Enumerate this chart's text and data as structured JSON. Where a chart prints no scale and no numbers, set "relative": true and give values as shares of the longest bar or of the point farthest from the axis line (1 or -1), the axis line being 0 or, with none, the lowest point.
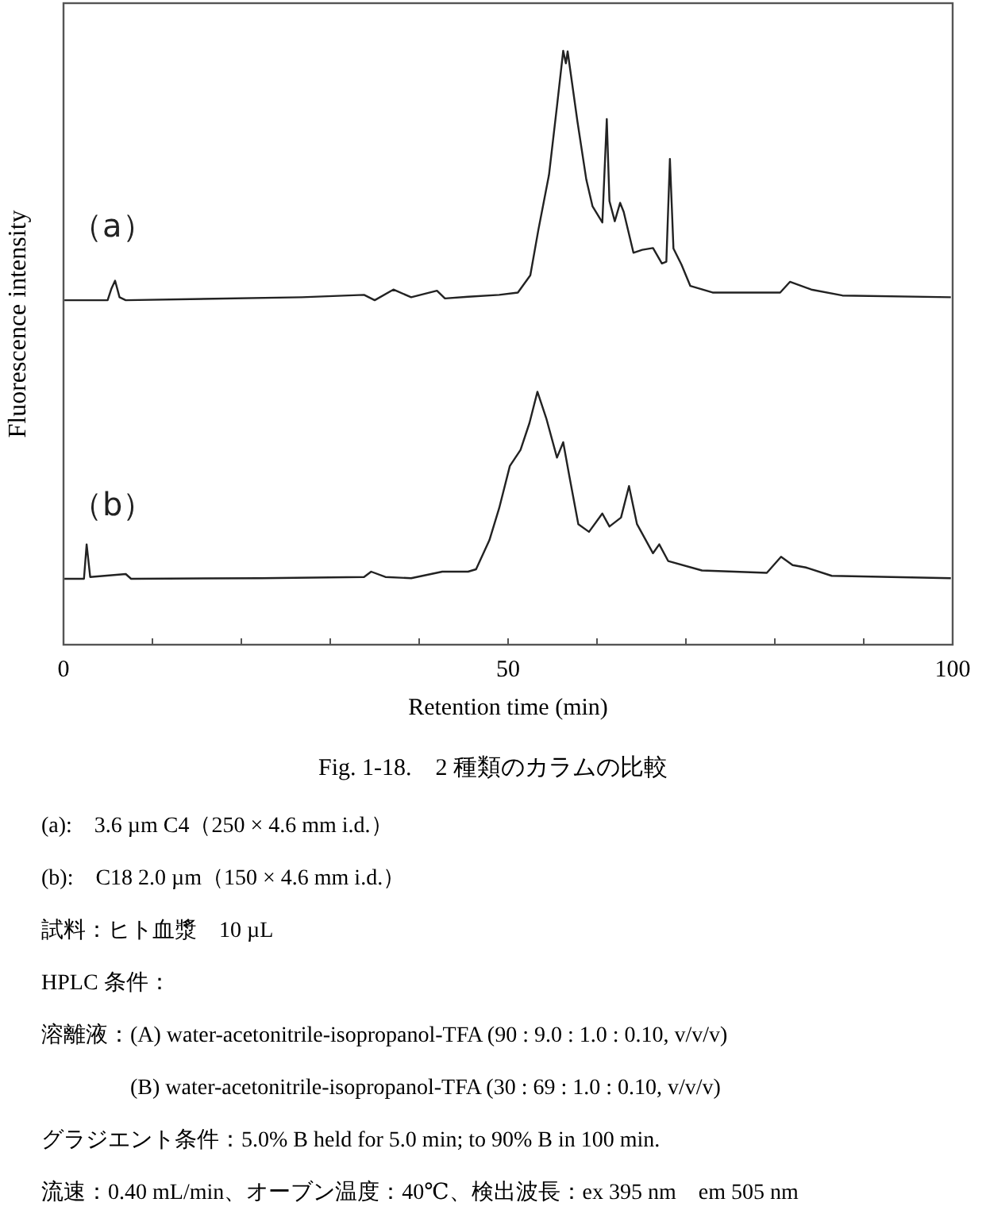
{
  "chart_data": {
    "type": "line",
    "relative": true,
    "title": "Fig. 1-18.　2 種類のカラムの比較",
    "xlabel": "Retention time (min)",
    "ylabel": "Fluorescence intensity",
    "xlim": [
      0,
      100
    ],
    "xticks": [
      0,
      {
        "value": 10,
        "label": null
      },
      {
        "value": 20,
        "label": null
      },
      {
        "value": 30,
        "label": null
      },
      {
        "value": 40,
        "label": null
      },
      50,
      {
        "value": 60,
        "label": null
      },
      {
        "value": 70,
        "label": null
      },
      {
        "value": 80,
        "label": null
      },
      {
        "value": 90,
        "label": null
      },
      100
    ],
    "grid": false,
    "legend": false,
    "series": [
      {
        "name": "（a）",
        "color": "#222222",
        "x": [
          0.1,
          4.96,
          5.4,
          5.8,
          6.3,
          7.0,
          26.8,
          33.8,
          35.0,
          37.1,
          39.1,
          42.0,
          42.9,
          45.5,
          49.0,
          51.1,
          52.5,
          53.4,
          54.6,
          55.5,
          56.2,
          56.5,
          56.7,
          57.8,
          58.8,
          59.5,
          60.6,
          61.1,
          61.4,
          62.0,
          62.6,
          63.0,
          64.1,
          65.1,
          66.3,
          67.3,
          67.8,
          68.2,
          68.6,
          69.5,
          70.5,
          73.0,
          80.6,
          81.7,
          84.1,
          87.6,
          99.8
        ],
        "values": [
          0.58,
          0.58,
          0.6,
          0.613,
          0.585,
          0.58,
          0.585,
          0.589,
          0.58,
          0.598,
          0.585,
          0.596,
          0.583,
          0.586,
          0.589,
          0.593,
          0.622,
          0.698,
          0.791,
          0.907,
          1.0,
          0.979,
          0.999,
          0.881,
          0.783,
          0.738,
          0.711,
          0.885,
          0.747,
          0.713,
          0.744,
          0.729,
          0.66,
          0.665,
          0.668,
          0.642,
          0.645,
          0.818,
          0.667,
          0.64,
          0.604,
          0.593,
          0.593,
          0.611,
          0.598,
          0.588,
          0.585
        ]
      },
      {
        "name": "（b）",
        "color": "#222222",
        "x": [
          0.1,
          2.3,
          2.6,
          3.0,
          7.0,
          7.6,
          22.2,
          33.8,
          34.6,
          36.2,
          39.1,
          42.6,
          45.5,
          46.4,
          47.9,
          49.0,
          50.2,
          51.4,
          52.4,
          53.3,
          54.3,
          55.5,
          56.2,
          56.9,
          57.9,
          59.1,
          60.6,
          61.4,
          62.7,
          63.6,
          64.5,
          66.3,
          67.0,
          68.0,
          71.8,
          79.1,
          80.7,
          82.0,
          83.5,
          86.4,
          99.8
        ],
        "values": [
          0.111,
          0.111,
          0.169,
          0.114,
          0.119,
          0.111,
          0.112,
          0.114,
          0.123,
          0.114,
          0.112,
          0.123,
          0.123,
          0.127,
          0.176,
          0.23,
          0.301,
          0.328,
          0.373,
          0.426,
          0.381,
          0.315,
          0.341,
          0.283,
          0.203,
          0.19,
          0.221,
          0.199,
          0.214,
          0.267,
          0.203,
          0.154,
          0.169,
          0.141,
          0.125,
          0.121,
          0.148,
          0.134,
          0.13,
          0.116,
          0.112
        ]
      }
    ],
    "annotations": [
      "(a):　3.6 µm C4（250 × 4.6 mm i.d.）",
      "(b):　C18 2.0 µm（150 × 4.6 mm i.d.）",
      "試料：ヒト血漿　10 µL",
      "HPLC 条件：",
      "溶離液：(A) water-acetonitrile-isopropanol-TFA (90 : 9.0 : 1.0 : 0.10, v/v/v)",
      "　　　　(B) water-acetonitrile-isopropanol-TFA (30 : 69 : 1.0 : 0.10, v/v/v)",
      "グラジエント条件：5.0% B held for 5.0 min; to 90% B in 100 min.",
      "流速：0.40 mL/min、オーブン温度：40℃、検出波長：ex 395 nm　em 505 nm"
    ]
  }
}
